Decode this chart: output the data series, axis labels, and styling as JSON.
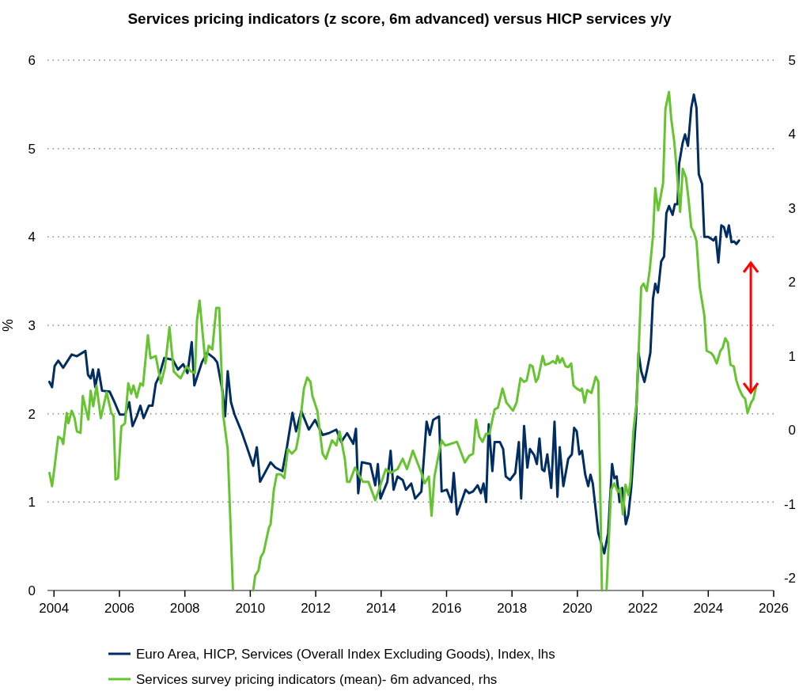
{
  "chart_data": {
    "type": "line",
    "title": "Services pricing indicators (z score, 6m advanced) versus HICP services y/y",
    "ylabel": "%",
    "xlim": [
      2003.8,
      2026
    ],
    "xticks": [
      2004,
      2006,
      2008,
      2010,
      2012,
      2014,
      2016,
      2018,
      2020,
      2022,
      2024,
      2026
    ],
    "ylim": [
      0,
      6
    ],
    "yticks": [
      0,
      1,
      2,
      3,
      4,
      5,
      6
    ],
    "y2lim": [
      -2.17,
      5
    ],
    "y2ticks": [
      -2,
      -1,
      0,
      1,
      2,
      3,
      4,
      5
    ],
    "grid": "y",
    "legend": "bottom",
    "line_style": "solid",
    "marker": "none",
    "series": [
      {
        "name": "Euro Area, HICP, Services (Overall Index Excluding Goods), Index, lhs",
        "color": "#002d62",
        "x": [
          2003.86,
          2003.94,
          2004.02,
          2004.13,
          2004.28,
          2004.54,
          2004.7,
          2004.96,
          2005.04,
          2005.12,
          2005.19,
          2005.26,
          2005.36,
          2005.47,
          2005.7,
          2005.85,
          2006.01,
          2006.17,
          2006.3,
          2006.4,
          2006.53,
          2006.64,
          2006.74,
          2006.9,
          2007.01,
          2007.11,
          2007.21,
          2007.37,
          2007.63,
          2007.79,
          2007.95,
          2008.08,
          2008.21,
          2008.29,
          2008.52,
          2008.68,
          2008.89,
          2008.99,
          2009.07,
          2009.15,
          2009.23,
          2009.31,
          2009.41,
          2009.52,
          2009.73,
          2009.88,
          2010.09,
          2010.2,
          2010.3,
          2010.62,
          2010.77,
          2010.98,
          2011.12,
          2011.29,
          2011.4,
          2011.56,
          2011.79,
          2011.98,
          2012.21,
          2012.4,
          2012.63,
          2012.78,
          2012.96,
          2013.15,
          2013.23,
          2013.3,
          2013.41,
          2013.67,
          2013.82,
          2013.9,
          2013.98,
          2014.19,
          2014.29,
          2014.38,
          2014.5,
          2014.66,
          2014.76,
          2014.92,
          2015.04,
          2015.23,
          2015.39,
          2015.49,
          2015.59,
          2015.77,
          2015.85,
          2016.01,
          2016.15,
          2016.22,
          2016.32,
          2016.58,
          2016.69,
          2016.81,
          2016.95,
          2017.05,
          2017.13,
          2017.21,
          2017.29,
          2017.4,
          2017.47,
          2017.63,
          2017.73,
          2017.81,
          2017.94,
          2018.1,
          2018.21,
          2018.28,
          2018.37,
          2018.47,
          2018.55,
          2018.68,
          2018.76,
          2018.84,
          2018.92,
          2018.99,
          2019.08,
          2019.2,
          2019.3,
          2019.39,
          2019.46,
          2019.57,
          2019.72,
          2019.83,
          2019.9,
          2019.98,
          2020.06,
          2020.14,
          2020.24,
          2020.33,
          2020.4,
          2020.47,
          2020.64,
          2020.82,
          2020.94,
          2021.06,
          2021.13,
          2021.2,
          2021.29,
          2021.37,
          2021.48,
          2021.56,
          2021.65,
          2021.79,
          2021.87,
          2021.95,
          2022.05,
          2022.12,
          2022.23,
          2022.31,
          2022.38,
          2022.46,
          2022.56,
          2022.65,
          2022.72,
          2022.8,
          2022.91,
          2022.98,
          2023.06,
          2023.11,
          2023.22,
          2023.29,
          2023.38,
          2023.48,
          2023.56,
          2023.64,
          2023.71,
          2023.81,
          2023.88,
          2024,
          2024.16,
          2024.23,
          2024.31,
          2024.4,
          2024.48,
          2024.56,
          2024.63,
          2024.71,
          2024.79,
          2024.86,
          2024.94
        ],
        "values": [
          2.36,
          2.3,
          2.54,
          2.6,
          2.52,
          2.67,
          2.65,
          2.71,
          2.44,
          2.4,
          2.5,
          2.3,
          2.5,
          2.26,
          2.25,
          2.13,
          1.99,
          1.99,
          2.13,
          1.86,
          1.97,
          2.09,
          1.95,
          2.09,
          2.09,
          2.34,
          2.42,
          2.63,
          2.61,
          2.5,
          2.56,
          2.46,
          2.81,
          2.32,
          2.58,
          2.69,
          2.63,
          2.58,
          2.42,
          2.26,
          1.97,
          2.48,
          2.13,
          1.99,
          1.8,
          1.64,
          1.41,
          1.62,
          1.23,
          1.45,
          1.39,
          1.35,
          1.62,
          2.01,
          1.8,
          2.03,
          1.82,
          1.93,
          1.76,
          1.78,
          1.82,
          1.68,
          1.78,
          1.66,
          1.83,
          1.1,
          1.45,
          1.43,
          1.19,
          1.43,
          1.04,
          1.23,
          1.58,
          1.14,
          1.29,
          1.25,
          1.14,
          1.21,
          1.04,
          1.12,
          1.91,
          1.76,
          1.93,
          1.97,
          1.12,
          1.14,
          1,
          1.33,
          0.86,
          1.14,
          1.1,
          1.12,
          1.19,
          1.1,
          1.21,
          1,
          1.88,
          1.35,
          1.68,
          1.68,
          1.6,
          1.29,
          1.25,
          1.33,
          1.68,
          1.04,
          1.86,
          1.39,
          1.6,
          1.53,
          1.43,
          1.72,
          1.37,
          1.35,
          1.54,
          1.16,
          1.91,
          1.06,
          1.62,
          1.18,
          1.49,
          1.54,
          1.84,
          1.8,
          1.54,
          1.58,
          1.31,
          1.18,
          1.31,
          1.21,
          0.65,
          0.42,
          0.65,
          1.43,
          1.27,
          1.29,
          1,
          1.16,
          0.75,
          0.86,
          1.18,
          1.95,
          2.69,
          2.48,
          2.36,
          2.48,
          2.69,
          3.3,
          3.47,
          3.37,
          3.72,
          3.78,
          4.27,
          4.35,
          4.25,
          4.37,
          4.37,
          4.83,
          5.07,
          5.16,
          5.03,
          5.46,
          5.61,
          5.46,
          4.71,
          4.6,
          4,
          4,
          3.96,
          4,
          3.71,
          4.13,
          4.11,
          4,
          4.13,
          3.94,
          3.95,
          3.92,
          3.96
        ]
      },
      {
        "name": "Services survey pricing indicators (mean)- 6m advanced, rhs",
        "color": "#66c431",
        "axis": "y2",
        "x": [
          2003.86,
          2003.94,
          2004.02,
          2004.13,
          2004.23,
          2004.28,
          2004.39,
          2004.44,
          2004.54,
          2004.63,
          2004.7,
          2004.81,
          2004.88,
          2004.96,
          2005.05,
          2005.12,
          2005.2,
          2005.3,
          2005.43,
          2005.61,
          2005.75,
          2005.82,
          2005.88,
          2005.96,
          2006.06,
          2006.17,
          2006.27,
          2006.36,
          2006.43,
          2006.53,
          2006.64,
          2006.72,
          2006.87,
          2006.95,
          2007.11,
          2007.27,
          2007.39,
          2007.53,
          2007.66,
          2007.77,
          2007.87,
          2008.05,
          2008.19,
          2008.31,
          2008.37,
          2008.45,
          2008.63,
          2008.73,
          2008.84,
          2008.96,
          2009.05,
          2009.17,
          2009.31,
          2009.47,
          2009.8,
          2010.09,
          2010.15,
          2010.25,
          2010.32,
          2010.41,
          2010.57,
          2010.62,
          2010.72,
          2010.81,
          2010.93,
          2011.04,
          2011.15,
          2011.27,
          2011.4,
          2011.48,
          2011.64,
          2011.74,
          2011.84,
          2011.9,
          2012.05,
          2012.21,
          2012.31,
          2012.5,
          2012.63,
          2012.73,
          2012.89,
          2012.96,
          2013.04,
          2013.2,
          2013.44,
          2013.61,
          2013.82,
          2013.93,
          2014.14,
          2014.29,
          2014.5,
          2014.66,
          2014.79,
          2014.97,
          2015.23,
          2015.33,
          2015.46,
          2015.54,
          2015.63,
          2015.75,
          2015.85,
          2015.96,
          2016.11,
          2016.32,
          2016.56,
          2016.69,
          2016.81,
          2016.9,
          2017,
          2017.1,
          2017.21,
          2017.31,
          2017.47,
          2017.57,
          2017.71,
          2017.83,
          2018.03,
          2018.14,
          2018.26,
          2018.37,
          2018.45,
          2018.55,
          2018.63,
          2018.73,
          2018.8,
          2018.94,
          2019.01,
          2019.15,
          2019.25,
          2019.34,
          2019.39,
          2019.46,
          2019.54,
          2019.64,
          2019.72,
          2019.81,
          2019.88,
          2019.98,
          2020.09,
          2020.14,
          2020.22,
          2020.3,
          2020.43,
          2020.56,
          2020.64,
          2020.75,
          2020.82,
          2020.89,
          2021.03,
          2021.13,
          2021.24,
          2021.31,
          2021.39,
          2021.47,
          2021.56,
          2021.62,
          2021.71,
          2021.81,
          2021.95,
          2022.02,
          2022.12,
          2022.21,
          2022.31,
          2022.38,
          2022.47,
          2022.62,
          2022.69,
          2022.8,
          2022.87,
          2022.96,
          2023.04,
          2023.14,
          2023.22,
          2023.32,
          2023.4,
          2023.48,
          2023.56,
          2023.64,
          2023.74,
          2023.88,
          2023.95,
          2024.09,
          2024.16,
          2024.26,
          2024.37,
          2024.44,
          2024.52,
          2024.6,
          2024.68,
          2024.78,
          2024.86,
          2024.94,
          2025.05,
          2025.13,
          2025.2,
          2025.31,
          2025.38,
          2025.46
        ],
        "values": [
          -0.58,
          -0.76,
          -0.49,
          -0.09,
          -0.12,
          -0.19,
          0.23,
          0.09,
          0.26,
          0.16,
          -0.02,
          -0.04,
          0.46,
          0.3,
          0.14,
          0.53,
          0.32,
          0.6,
          0.16,
          0.51,
          0.23,
          0.19,
          -0.67,
          -0.65,
          0.05,
          0.09,
          0.63,
          0.49,
          0.6,
          0.44,
          0.63,
          0.6,
          1.28,
          0.97,
          1,
          0.63,
          0.84,
          1.39,
          0.79,
          0.74,
          0.7,
          0.86,
          0.79,
          0.77,
          1.48,
          1.75,
          0.9,
          1.14,
          1.09,
          1.65,
          1.65,
          0.21,
          -0.26,
          -2.17,
          null,
          -2.17,
          -1.97,
          -1.9,
          -1.72,
          -1.65,
          -1.32,
          -1.28,
          -0.81,
          -0.6,
          -0.6,
          -0.65,
          -0.26,
          -0.32,
          -0.26,
          -0.07,
          0.56,
          0.71,
          0.65,
          0.46,
          0.26,
          -0.32,
          -0.39,
          -0.14,
          -0.21,
          -0.02,
          -0.39,
          -0.7,
          -0.7,
          -0.51,
          -0.7,
          -0.7,
          -0.95,
          -0.81,
          -0.53,
          -0.58,
          -0.53,
          -0.39,
          -0.53,
          -0.28,
          -0.58,
          -0.72,
          -0.63,
          -1.16,
          -0.63,
          -0.35,
          -0.14,
          -0.21,
          -0.19,
          -0.16,
          -0.44,
          -0.35,
          -0.32,
          0.14,
          -0.09,
          -0.16,
          -0.05,
          -0.05,
          0.28,
          0.3,
          0.56,
          0.37,
          0.26,
          0.37,
          0.7,
          0.65,
          0.67,
          0.88,
          0.86,
          0.65,
          0.7,
          1,
          0.88,
          0.9,
          0.93,
          0.9,
          1,
          0.91,
          0.97,
          0.86,
          0.85,
          0.9,
          0.6,
          0.56,
          0.53,
          0.56,
          0.37,
          0.54,
          0.5,
          0.72,
          0.65,
          -2.17,
          null,
          -2.17,
          -0.81,
          -0.72,
          -0.84,
          -0.79,
          -1.14,
          -0.74,
          -0.88,
          -0.7,
          -0.02,
          0.37,
          1.93,
          1.98,
          1.88,
          2.16,
          2.62,
          3.27,
          2.97,
          3.34,
          4.34,
          4.57,
          4.2,
          3.9,
          3.5,
          2.95,
          3.53,
          3.41,
          3.11,
          2.74,
          2.67,
          2.55,
          1.93,
          1.55,
          1.07,
          1.04,
          1,
          0.9,
          1.07,
          1.11,
          1.24,
          1.18,
          0.88,
          0.86,
          0.67,
          0.56,
          0.46,
          0.42,
          0.23,
          0.37,
          0.42,
          0.58
        ]
      }
    ]
  }
}
